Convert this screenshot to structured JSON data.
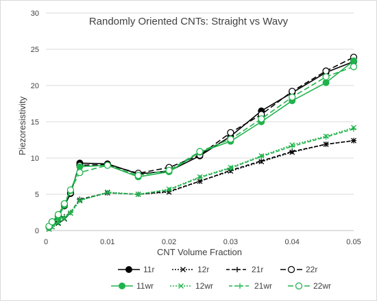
{
  "chart_data": {
    "type": "line",
    "title": "Randomly Oriented CNTs: Straight vs Wavy",
    "xlabel": "CNT Volume Fraction",
    "ylabel": "Piezoresistivity",
    "xlim": [
      0,
      0.05
    ],
    "ylim": [
      0,
      30
    ],
    "xticks": [
      "0",
      "0.01",
      "0.02",
      "0.03",
      "0.04",
      "0.05"
    ],
    "yticks": [
      "0",
      "5",
      "10",
      "15",
      "20",
      "25",
      "30"
    ],
    "grid": "horizontal",
    "legend_position": "bottom",
    "x": [
      0.0005,
      0.001,
      0.002,
      0.003,
      0.004,
      0.0055,
      0.01,
      0.015,
      0.02,
      0.025,
      0.03,
      0.035,
      0.04,
      0.0455,
      0.05
    ],
    "series": [
      {
        "name": "11r",
        "color": "#000000",
        "dash": "solid",
        "marker": "filled-circle",
        "values": [
          0.5,
          1.1,
          2.0,
          3.4,
          5.1,
          9.3,
          9.2,
          7.8,
          8.2,
          10.3,
          13.0,
          16.5,
          19.0,
          21.8,
          23.3
        ]
      },
      {
        "name": "12r",
        "color": "#000000",
        "dash": "dotted",
        "marker": "x",
        "values": [
          0.2,
          0.5,
          1.0,
          1.6,
          2.4,
          4.2,
          5.2,
          5.0,
          5.3,
          6.8,
          8.2,
          9.5,
          10.8,
          11.9,
          12.4
        ]
      },
      {
        "name": "21r",
        "color": "#000000",
        "dash": "dashed",
        "marker": "plus",
        "values": [
          0.3,
          0.6,
          1.2,
          1.9,
          2.5,
          4.3,
          5.2,
          5.0,
          5.4,
          6.8,
          8.3,
          9.6,
          10.9,
          11.9,
          12.4
        ]
      },
      {
        "name": "22r",
        "color": "#000000",
        "dash": "longdash",
        "marker": "open-circle",
        "values": [
          0.5,
          1.2,
          2.0,
          3.6,
          5.2,
          9.0,
          9.1,
          7.9,
          8.7,
          10.4,
          13.5,
          16.0,
          19.2,
          22.0,
          23.9
        ]
      },
      {
        "name": "11wr",
        "color": "#1fb34c",
        "dash": "solid",
        "marker": "filled-circle",
        "values": [
          0.5,
          1.0,
          1.8,
          3.5,
          5.5,
          8.8,
          9.0,
          7.4,
          8.1,
          10.8,
          12.3,
          15.0,
          17.9,
          20.4,
          23.4
        ]
      },
      {
        "name": "12wr",
        "color": "#1fb34c",
        "dash": "dotted",
        "marker": "x",
        "values": [
          0.2,
          0.5,
          1.1,
          1.7,
          2.4,
          4.1,
          5.3,
          5.0,
          5.7,
          7.4,
          8.7,
          10.3,
          11.8,
          13.0,
          14.2
        ]
      },
      {
        "name": "21wr",
        "color": "#1fb34c",
        "dash": "dashed",
        "marker": "plus",
        "values": [
          0.3,
          0.6,
          1.1,
          1.8,
          2.5,
          4.2,
          5.2,
          5.0,
          5.6,
          7.3,
          8.6,
          10.2,
          11.6,
          12.9,
          14.0
        ]
      },
      {
        "name": "22wr",
        "color": "#1fb34c",
        "dash": "longdash",
        "marker": "open-circle",
        "values": [
          0.6,
          1.2,
          2.2,
          3.7,
          5.6,
          8.0,
          9.0,
          7.6,
          8.3,
          10.9,
          12.6,
          15.4,
          18.4,
          21.2,
          22.6
        ]
      }
    ]
  }
}
